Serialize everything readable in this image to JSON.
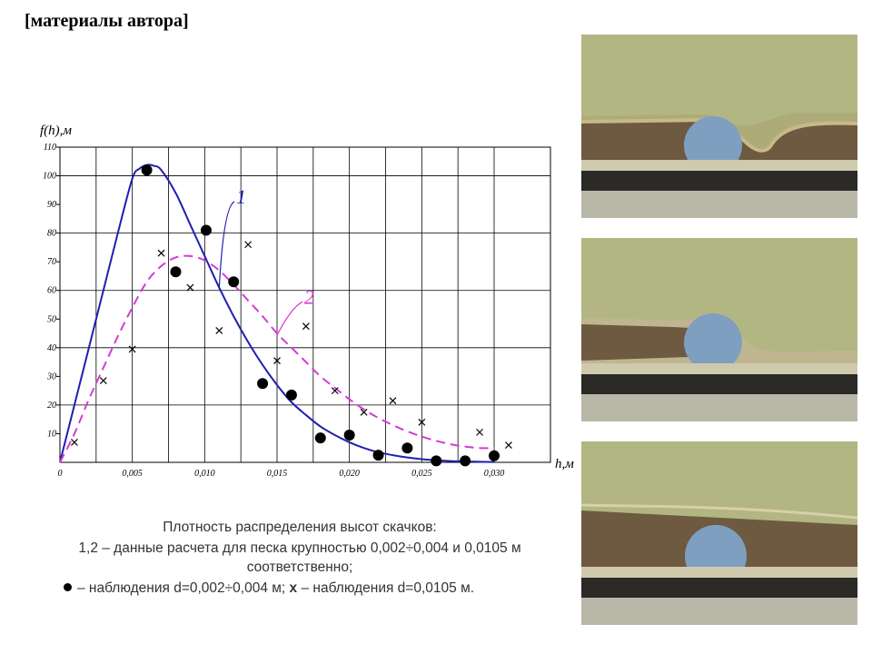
{
  "header": {
    "label": "[материалы автора]"
  },
  "caption": {
    "line1": "Плотность распределения высот скачков:",
    "line2": "1,2 – данные расчета для песка крупностью 0,002÷0,004 и 0,0105 м",
    "line3": "соответственно;",
    "line4_obs1": "– наблюдения d=0,002÷0,004 м;",
    "line4_x": "x",
    "line4_obs2": "– наблюдения d=0,0105 м."
  },
  "photos": [
    {
      "name": "photo-1",
      "sand_color": "#6d5a40",
      "water_color": "#a9ad78",
      "sphere_color": "#7f9fc0"
    },
    {
      "name": "photo-2",
      "sand_color": "#6d5a40",
      "water_color": "#a9ad78",
      "sphere_color": "#7f9fc0"
    },
    {
      "name": "photo-3",
      "sand_color": "#6d5a40",
      "water_color": "#a9ad78",
      "sphere_color": "#7f9fc0"
    }
  ],
  "chart_data": {
    "type": "line",
    "ylabel": "f(h),м",
    "xlabel": "h,м",
    "xlim": [
      0,
      0.032
    ],
    "ylim": [
      0,
      110
    ],
    "x_ticks": [
      {
        "v": 0,
        "label": "0"
      },
      {
        "v": 0.005,
        "label": "0,005"
      },
      {
        "v": 0.01,
        "label": "0,010"
      },
      {
        "v": 0.015,
        "label": "0,015"
      },
      {
        "v": 0.02,
        "label": "0,020"
      },
      {
        "v": 0.025,
        "label": "0,025"
      },
      {
        "v": 0.03,
        "label": "0,030"
      }
    ],
    "y_ticks": [
      {
        "v": 10,
        "label": "10"
      },
      {
        "v": 20,
        "label": "20"
      },
      {
        "v": 30,
        "label": "30"
      },
      {
        "v": 40,
        "label": "40"
      },
      {
        "v": 50,
        "label": "50"
      },
      {
        "v": 60,
        "label": "60"
      },
      {
        "v": 70,
        "label": "70"
      },
      {
        "v": 80,
        "label": "80"
      },
      {
        "v": 90,
        "label": "90"
      },
      {
        "v": 100,
        "label": "100"
      },
      {
        "v": 110,
        "label": "110"
      }
    ],
    "grid": true,
    "series": [
      {
        "name": "1",
        "color": "#1f1fb0",
        "style": "solid",
        "x": [
          0,
          0.001,
          0.002,
          0.003,
          0.004,
          0.005,
          0.0055,
          0.006,
          0.0065,
          0.007,
          0.008,
          0.009,
          0.01,
          0.011,
          0.012,
          0.013,
          0.014,
          0.015,
          0.016,
          0.017,
          0.018,
          0.019,
          0.02,
          0.021,
          0.022,
          0.023,
          0.024,
          0.025,
          0.026,
          0.027,
          0.028,
          0.029,
          0.03
        ],
        "y": [
          0,
          20,
          40,
          60,
          80,
          99,
          102.5,
          103.8,
          103.5,
          102,
          94,
          83,
          72,
          61,
          51,
          42,
          34,
          27,
          21,
          16.5,
          12.5,
          9.5,
          7,
          5,
          3.5,
          2.5,
          1.7,
          1.1,
          0.7,
          0.45,
          0.3,
          0.2,
          0.1
        ]
      },
      {
        "name": "2",
        "color": "#d63ad6",
        "style": "dashed",
        "x": [
          0,
          0.001,
          0.002,
          0.003,
          0.004,
          0.005,
          0.006,
          0.007,
          0.008,
          0.009,
          0.01,
          0.011,
          0.012,
          0.013,
          0.014,
          0.015,
          0.016,
          0.017,
          0.018,
          0.019,
          0.02,
          0.021,
          0.022,
          0.023,
          0.024,
          0.025,
          0.026,
          0.027,
          0.028,
          0.029,
          0.03
        ],
        "y": [
          0,
          10,
          22,
          33,
          44,
          54,
          63,
          68.5,
          71.5,
          72,
          70.5,
          67,
          62,
          56.5,
          51,
          45,
          40,
          35,
          30,
          26,
          22,
          18.5,
          15.5,
          13,
          10.8,
          9,
          7.5,
          6.3,
          5.5,
          5,
          5
        ]
      }
    ],
    "curve_labels": [
      {
        "text": "1",
        "series": 0,
        "at_x": 0.0118,
        "at_y": 91
      },
      {
        "text": "2",
        "series": 1,
        "at_x": 0.0165,
        "at_y": 56
      }
    ],
    "observations_dots": {
      "name": "наблюдения d=0,002÷0,004 м",
      "x": [
        0.006,
        0.008,
        0.0101,
        0.012,
        0.014,
        0.016,
        0.018,
        0.02,
        0.022,
        0.024,
        0.026,
        0.028,
        0.03
      ],
      "y": [
        102,
        66.5,
        81,
        63,
        27.5,
        23.5,
        8.5,
        9.5,
        2.5,
        5,
        0.5,
        0.5,
        2.3
      ]
    },
    "observations_crosses": {
      "name": "наблюдения d=0,0105 м",
      "x": [
        0.001,
        0.003,
        0.005,
        0.007,
        0.009,
        0.011,
        0.013,
        0.015,
        0.017,
        0.019,
        0.021,
        0.023,
        0.025,
        0.029,
        0.031
      ],
      "y": [
        7,
        28.5,
        39.5,
        73,
        61,
        46,
        76,
        35.5,
        47.5,
        25,
        17.5,
        21.5,
        14,
        10.5,
        6
      ]
    }
  }
}
